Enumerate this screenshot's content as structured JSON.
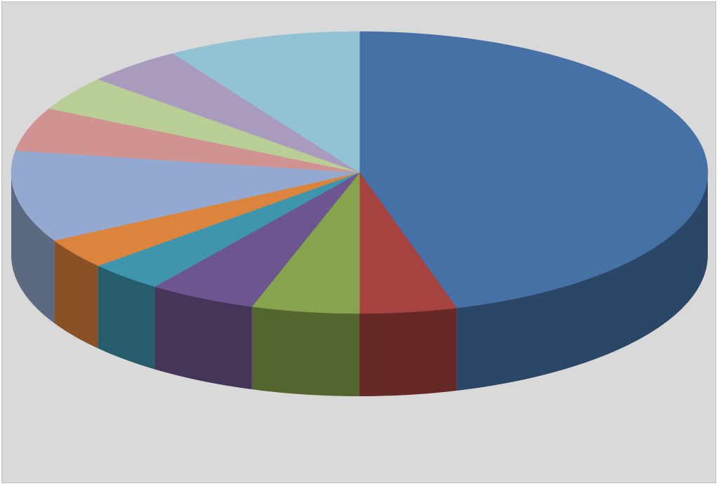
{
  "chart_data": {
    "type": "pie",
    "style": "3d",
    "title": "",
    "legend": "none",
    "data_labels": "none",
    "slices": [
      {
        "value": 45.5,
        "color": "#4571a6"
      },
      {
        "value": 4.5,
        "color": "#a6423f"
      },
      {
        "value": 5.0,
        "color": "#87a34d"
      },
      {
        "value": 5.0,
        "color": "#6d5590"
      },
      {
        "value": 3.5,
        "color": "#3d96ae"
      },
      {
        "value": 3.5,
        "color": "#db843d"
      },
      {
        "value": 10.5,
        "color": "#93a9d0"
      },
      {
        "value": 5.0,
        "color": "#d19392"
      },
      {
        "value": 4.0,
        "color": "#b9cd96"
      },
      {
        "value": 4.5,
        "color": "#a99bbd"
      },
      {
        "value": 9.0,
        "color": "#92c3d4"
      }
    ]
  }
}
